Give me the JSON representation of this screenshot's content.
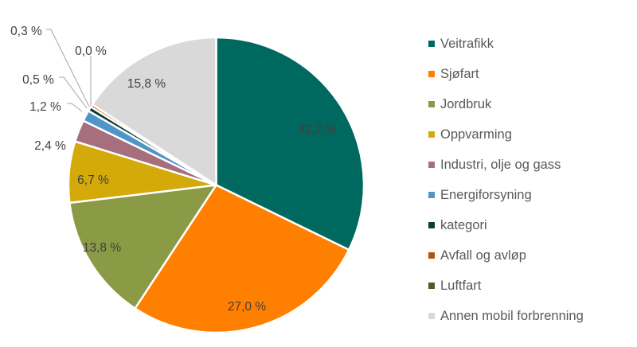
{
  "chart_data": {
    "type": "pie",
    "title": "",
    "start_angle": "12 o'clock",
    "direction": "clockwise",
    "legend_position": "right",
    "categories": [
      "Veitrafikk",
      "Sjøfart",
      "Jordbruk",
      "Oppvarming",
      "Industri, olje og gass",
      "Energiforsyning",
      "kategori",
      "Avfall og avløp",
      "Luftfart",
      "Annen mobil forbrenning"
    ],
    "values": [
      32.2,
      27.0,
      13.8,
      6.7,
      2.4,
      1.2,
      0.5,
      0.3,
      0.0,
      15.8
    ],
    "data_labels": [
      "32,2 %",
      "27,0 %",
      "13,8 %",
      "6,7 %",
      "2,4 %",
      "1,2 %",
      "0,5 %",
      "0,3 %",
      "0,0 %",
      "15,8 %"
    ],
    "colors": [
      "#00695f",
      "#ff7f00",
      "#8a9a45",
      "#d4a90a",
      "#a76e7d",
      "#4f95c8",
      "#0a3d33",
      "#b4530a",
      "#4a5e24",
      "#d9d9d9"
    ]
  },
  "legend": {
    "items": [
      {
        "label": "Veitrafikk",
        "color": "#00695f"
      },
      {
        "label": "Sjøfart",
        "color": "#ff7f00"
      },
      {
        "label": "Jordbruk",
        "color": "#8a9a45"
      },
      {
        "label": "Oppvarming",
        "color": "#d4a90a"
      },
      {
        "label": "Industri, olje og gass",
        "color": "#a76e7d"
      },
      {
        "label": "Energiforsyning",
        "color": "#4f95c8"
      },
      {
        "label": "kategori",
        "color": "#0a3d33"
      },
      {
        "label": "Avfall og avløp",
        "color": "#b4530a"
      },
      {
        "label": "Luftfart",
        "color": "#4a5e24"
      },
      {
        "label": "Annen mobil forbrenning",
        "color": "#d9d9d9"
      }
    ]
  }
}
